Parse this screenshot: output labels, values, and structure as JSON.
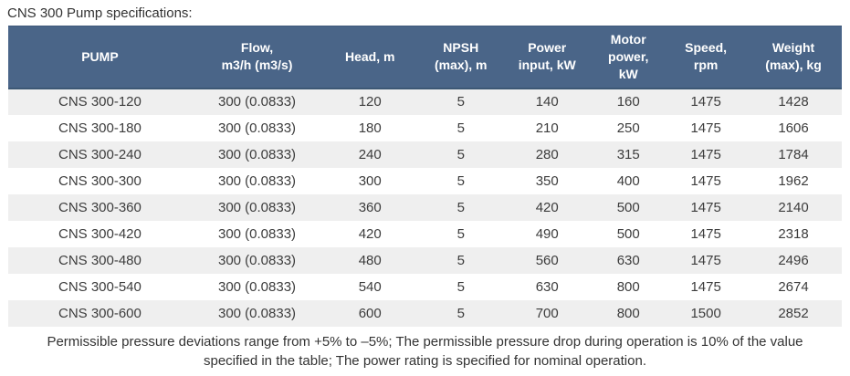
{
  "title": "CNS 300 Pump specifications:",
  "table": {
    "columns": [
      {
        "key": "pump",
        "label": "PUMP"
      },
      {
        "key": "flow",
        "label": "Flow,\nm3/h (m3/s)"
      },
      {
        "key": "head",
        "label": "Head, m"
      },
      {
        "key": "npsh",
        "label": "NPSH\n(max), m"
      },
      {
        "key": "power-input",
        "label": "Power\ninput, kW"
      },
      {
        "key": "motor-power",
        "label": "Motor\npower,\nkW"
      },
      {
        "key": "speed",
        "label": "Speed,\nrpm"
      },
      {
        "key": "weight",
        "label": "Weight\n(max), kg"
      }
    ],
    "rows": [
      [
        "CNS 300-120",
        "300 (0.0833)",
        "120",
        "5",
        "140",
        "160",
        "1475",
        "1428"
      ],
      [
        "CNS 300-180",
        "300 (0.0833)",
        "180",
        "5",
        "210",
        "250",
        "1475",
        "1606"
      ],
      [
        "CNS 300-240",
        "300 (0.0833)",
        "240",
        "5",
        "280",
        "315",
        "1475",
        "1784"
      ],
      [
        "CNS 300-300",
        "300 (0.0833)",
        "300",
        "5",
        "350",
        "400",
        "1475",
        "1962"
      ],
      [
        "CNS 300-360",
        "300 (0.0833)",
        "360",
        "5",
        "420",
        "500",
        "1475",
        "2140"
      ],
      [
        "CNS 300-420",
        "300 (0.0833)",
        "420",
        "5",
        "490",
        "500",
        "1475",
        "2318"
      ],
      [
        "CNS 300-480",
        "300 (0.0833)",
        "480",
        "5",
        "560",
        "630",
        "1475",
        "2496"
      ],
      [
        "CNS 300-540",
        "300 (0.0833)",
        "540",
        "5",
        "630",
        "800",
        "1475",
        "2674"
      ],
      [
        "CNS 300-600",
        "300 (0.0833)",
        "600",
        "5",
        "700",
        "800",
        "1500",
        "2852"
      ]
    ]
  },
  "footnote_lines": [
    "Permissible pressure deviations range from +5% to –5%; The permissible pressure drop during operation is 10% of the value",
    "specified in the table; The power rating is specified for nominal operation."
  ],
  "colors": {
    "header_background": "#4a6588",
    "header_text": "#ffffff",
    "row_alt_background": "#efefef",
    "row_background": "#ffffff",
    "body_text": "#3c3c3c"
  }
}
